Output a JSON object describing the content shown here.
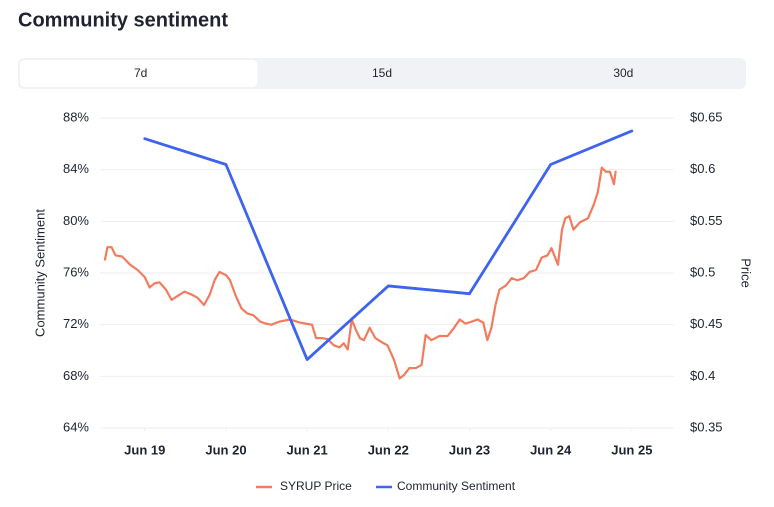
{
  "header": {
    "title": "Community sentiment"
  },
  "tabs": {
    "items": [
      "7d",
      "15d",
      "30d"
    ],
    "selected": 0
  },
  "chart_data": {
    "type": "line",
    "y_label": "Community Sentiment",
    "y2_label": "Price",
    "xlim": [
      -0.49,
      6.47
    ],
    "xticks": [
      {
        "value": 0,
        "label": "Jun 19"
      },
      {
        "value": 1,
        "label": "Jun 20"
      },
      {
        "value": 2,
        "label": "Jun 21"
      },
      {
        "value": 3,
        "label": "Jun 22"
      },
      {
        "value": 4,
        "label": "Jun 23"
      },
      {
        "value": 5,
        "label": "Jun 24"
      },
      {
        "value": 6,
        "label": "Jun 25"
      }
    ],
    "highlighted_xtick": 6,
    "highlight_color": "#3d63f0",
    "ylim": [
      64,
      88
    ],
    "yticks": [
      {
        "value": 64,
        "label": "64%"
      },
      {
        "value": 68,
        "label": "68%"
      },
      {
        "value": 72,
        "label": "72%"
      },
      {
        "value": 76,
        "label": "76%"
      },
      {
        "value": 80,
        "label": "80%"
      },
      {
        "value": 84,
        "label": "84%"
      },
      {
        "value": 88,
        "label": "88%"
      }
    ],
    "y2lim": [
      0.35,
      0.65
    ],
    "y2ticks": [
      {
        "value": 0.35,
        "label": "$0.35"
      },
      {
        "value": 0.4,
        "label": "$0.4"
      },
      {
        "value": 0.45,
        "label": "$0.45"
      },
      {
        "value": 0.5,
        "label": "$0.5"
      },
      {
        "value": 0.55,
        "label": "$0.55"
      },
      {
        "value": 0.6,
        "label": "$0.6"
      },
      {
        "value": 0.65,
        "label": "$0.65"
      }
    ],
    "grid": true,
    "legend": "bottom",
    "series": [
      {
        "name": "SYRUP Price",
        "color": "#f47a5e",
        "axis": "y2",
        "x": [
          -0.49,
          -0.46,
          -0.41,
          -0.36,
          -0.28,
          -0.18,
          -0.09,
          0,
          0.06,
          0.12,
          0.18,
          0.26,
          0.33,
          0.41,
          0.49,
          0.58,
          0.65,
          0.73,
          0.8,
          0.86,
          0.92,
          1.0,
          1.05,
          1.12,
          1.19,
          1.26,
          1.34,
          1.42,
          1.49,
          1.56,
          1.66,
          1.79,
          1.91,
          1.98,
          2.06,
          2.11,
          2.18,
          2.25,
          2.33,
          2.4,
          2.45,
          2.5,
          2.55,
          2.6,
          2.65,
          2.7,
          2.77,
          2.84,
          2.92,
          2.99,
          3.07,
          3.14,
          3.19,
          3.26,
          3.34,
          3.41,
          3.46,
          3.53,
          3.63,
          3.73,
          3.81,
          3.88,
          3.95,
          4.03,
          4.1,
          4.17,
          4.22,
          4.27,
          4.32,
          4.37,
          4.45,
          4.52,
          4.59,
          4.67,
          4.74,
          4.82,
          4.89,
          4.96,
          5.01,
          5.09,
          5.14,
          5.18,
          5.23,
          5.28,
          5.36,
          5.46,
          5.53,
          5.58,
          5.63,
          5.68,
          5.73,
          5.78,
          5.8
        ],
        "values": [
          0.513,
          0.525,
          0.525,
          0.517,
          0.516,
          0.508,
          0.503,
          0.496,
          0.486,
          0.49,
          0.491,
          0.484,
          0.474,
          0.478,
          0.482,
          0.479,
          0.476,
          0.469,
          0.479,
          0.493,
          0.501,
          0.498,
          0.493,
          0.478,
          0.466,
          0.461,
          0.459,
          0.453,
          0.451,
          0.45,
          0.453,
          0.455,
          0.452,
          0.451,
          0.45,
          0.437,
          0.437,
          0.436,
          0.43,
          0.428,
          0.432,
          0.426,
          0.455,
          0.445,
          0.437,
          0.435,
          0.447,
          0.437,
          0.433,
          0.43,
          0.416,
          0.398,
          0.401,
          0.408,
          0.408,
          0.411,
          0.44,
          0.435,
          0.439,
          0.439,
          0.447,
          0.455,
          0.451,
          0.453,
          0.455,
          0.452,
          0.435,
          0.447,
          0.469,
          0.484,
          0.488,
          0.495,
          0.493,
          0.495,
          0.501,
          0.503,
          0.515,
          0.517,
          0.524,
          0.508,
          0.542,
          0.553,
          0.555,
          0.542,
          0.549,
          0.553,
          0.566,
          0.578,
          0.602,
          0.598,
          0.598,
          0.586,
          0.598
        ]
      },
      {
        "name": "Community Sentiment",
        "color": "#3d63f0",
        "x": [
          0,
          1,
          2,
          3,
          4,
          5,
          6
        ],
        "values": [
          86.4,
          84.4,
          69.3,
          75.0,
          74.4,
          84.4,
          87.0
        ]
      }
    ]
  }
}
